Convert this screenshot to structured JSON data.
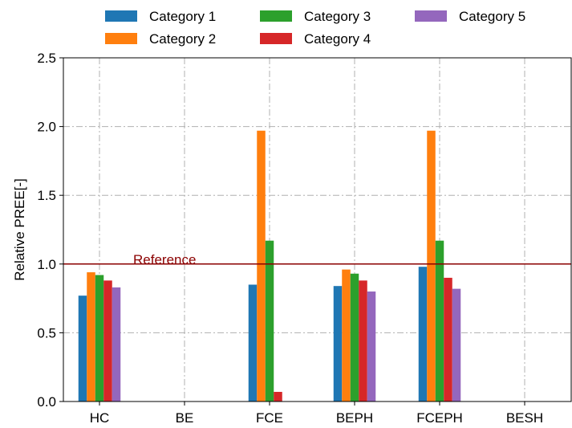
{
  "chart_data": {
    "type": "bar",
    "categories": [
      "HC",
      "BE",
      "FCE",
      "BEPH",
      "FCEPH",
      "BESH"
    ],
    "series": [
      {
        "name": "Category 1",
        "color": "#1f77b4",
        "values": [
          0.77,
          null,
          0.85,
          0.84,
          0.98,
          null
        ]
      },
      {
        "name": "Category 2",
        "color": "#ff7f0e",
        "values": [
          0.94,
          null,
          1.97,
          0.96,
          1.97,
          null
        ]
      },
      {
        "name": "Category 3",
        "color": "#2ca02c",
        "values": [
          0.92,
          null,
          1.17,
          0.93,
          1.17,
          null
        ]
      },
      {
        "name": "Category 4",
        "color": "#d62728",
        "values": [
          0.88,
          null,
          0.07,
          0.88,
          0.9,
          null
        ]
      },
      {
        "name": "Category 5",
        "color": "#9467bd",
        "values": [
          0.83,
          null,
          null,
          0.8,
          0.82,
          null
        ]
      }
    ],
    "xlabel": "",
    "ylabel": "Relative PREE[-]",
    "ylim": [
      0,
      2.5
    ],
    "yticks": [
      "0.0",
      "0.5",
      "1.0",
      "1.5",
      "2.0",
      "2.5"
    ],
    "grid": true,
    "legend_position": "top",
    "reference": {
      "value": 1.0,
      "label": "Reference",
      "color": "#8b0000"
    }
  }
}
